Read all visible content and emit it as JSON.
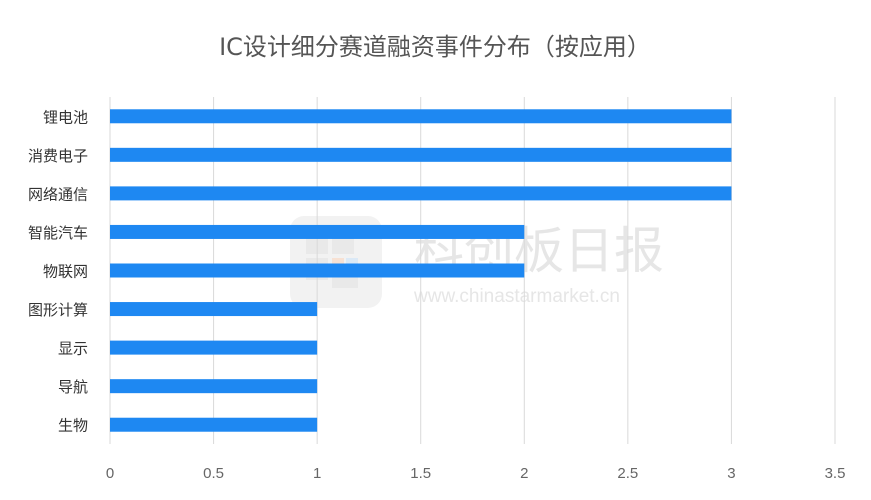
{
  "chart_data": {
    "type": "bar",
    "orientation": "horizontal",
    "title": "IC设计细分赛道融资事件分布（按应用）",
    "xlabel": "",
    "ylabel": "",
    "categories": [
      "锂电池",
      "消费电子",
      "网络通信",
      "智能汽车",
      "物联网",
      "图形计算",
      "显示",
      "导航",
      "生物"
    ],
    "values": [
      3,
      3,
      3,
      2,
      2,
      1,
      1,
      1,
      1
    ],
    "xlim": [
      0,
      3.5
    ],
    "ticks": [
      "0",
      "0.5",
      "1",
      "1.5",
      "2",
      "2.5",
      "3",
      "3.5"
    ],
    "tick_values": [
      0,
      0.5,
      1,
      1.5,
      2,
      2.5,
      3,
      3.5
    ],
    "bar_color": "#1e88f2",
    "grid": "vertical",
    "legend": "none"
  },
  "watermark": {
    "brand": "科创板日报",
    "url": "www.chinastarmarket.cn",
    "logo": "chinastarmarket-logo"
  },
  "colors": {
    "gridline": "#d9d9d9",
    "watermark": "#e6e6e6"
  }
}
